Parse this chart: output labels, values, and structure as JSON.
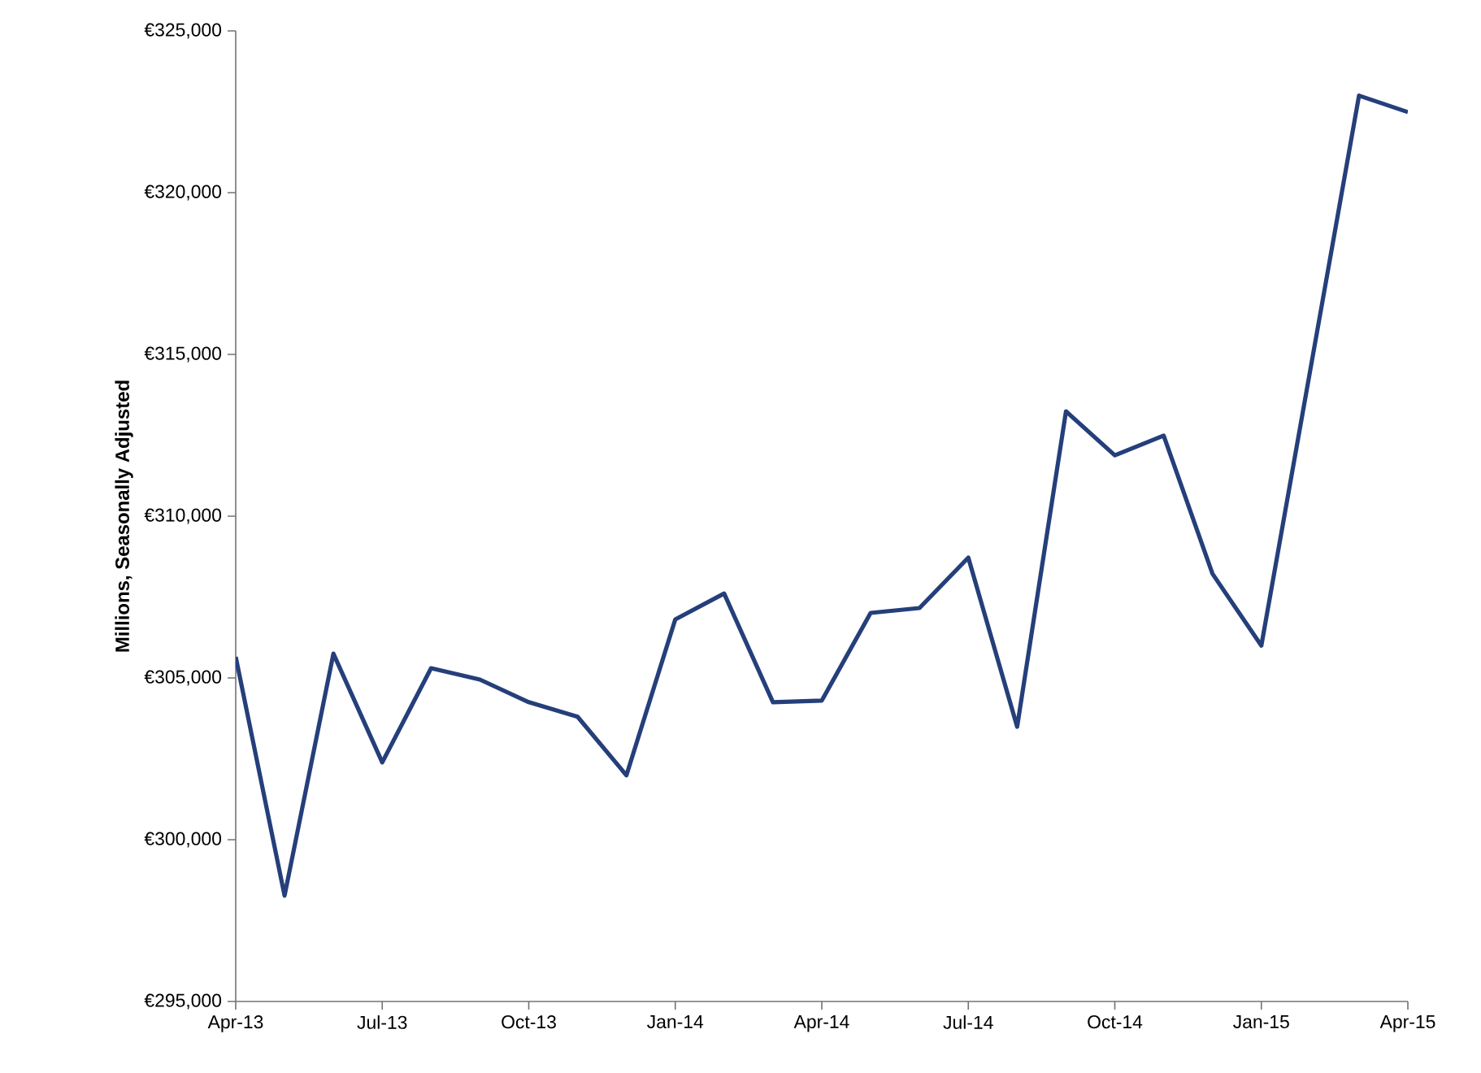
{
  "chart_data": {
    "type": "line",
    "ylabel": "Millions, Seasonally Adjusted",
    "categories": [
      "Apr-13",
      null,
      null,
      "Jul-13",
      null,
      null,
      "Oct-13",
      null,
      null,
      "Jan-14",
      null,
      null,
      "Apr-14",
      null,
      null,
      "Jul-14",
      null,
      null,
      "Oct-14",
      null,
      null,
      "Jan-15",
      null,
      null,
      "Apr-15"
    ],
    "series": [
      {
        "color": "#253f7a",
        "values": [
          305650,
          298270,
          305750,
          302390,
          305300,
          304950,
          304250,
          303800,
          301990,
          306810,
          307610,
          304250,
          304300,
          307010,
          307160,
          308720,
          303490,
          313240,
          311880,
          312490,
          308220,
          306000,
          314500,
          323000,
          322490
        ]
      }
    ],
    "ylim": [
      295000,
      325000
    ],
    "yticks": [
      {
        "value": 295000,
        "label": "€295,000"
      },
      {
        "value": 300000,
        "label": "€300,000"
      },
      {
        "value": 305000,
        "label": "€305,000"
      },
      {
        "value": 310000,
        "label": "€310,000"
      },
      {
        "value": 315000,
        "label": "€315,000"
      },
      {
        "value": 320000,
        "label": "€320,000"
      },
      {
        "value": 325000,
        "label": "€325,000"
      }
    ],
    "grid": false,
    "marker": "none",
    "line_style": "solid"
  }
}
